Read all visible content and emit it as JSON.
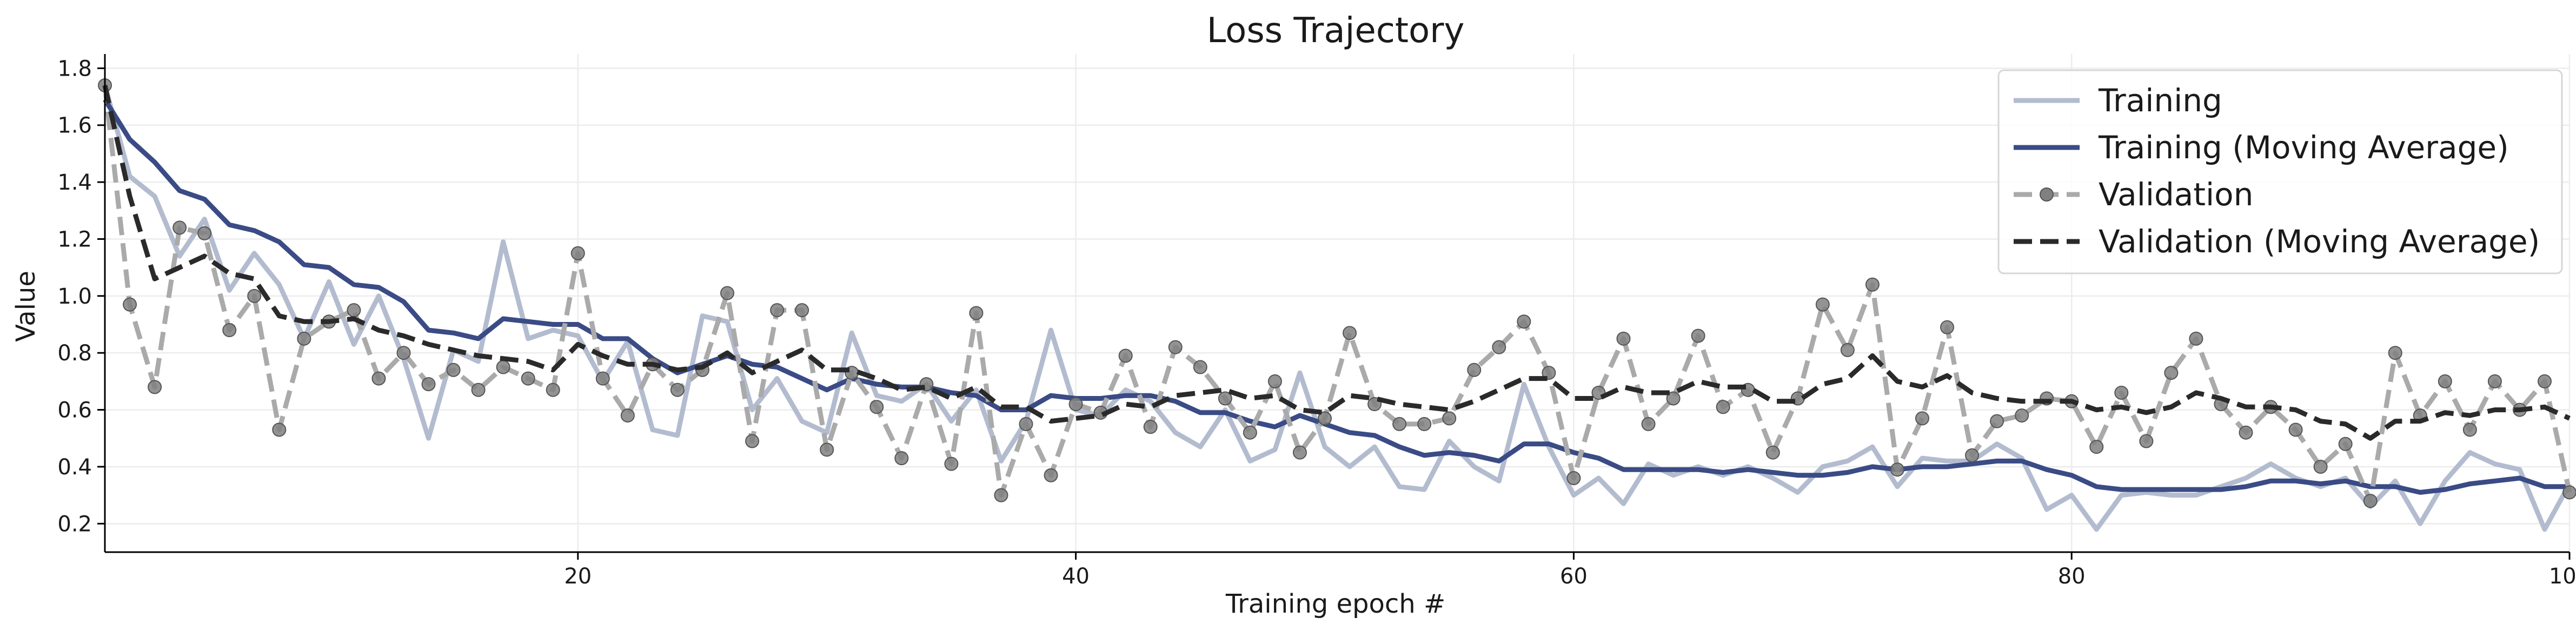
{
  "chart_data": {
    "type": "line",
    "title": "Loss Trajectory",
    "xlabel": "Training epoch #",
    "ylabel": "Value",
    "xlim": [
      1,
      100
    ],
    "ylim": [
      0.1,
      1.85
    ],
    "xticks": [
      20,
      40,
      60,
      80,
      100
    ],
    "yticks": [
      0.2,
      0.4,
      0.6,
      0.8,
      1.0,
      1.2,
      1.4,
      1.6,
      1.8
    ],
    "grid": true,
    "legend_position": "top-right",
    "x": [
      1,
      2,
      3,
      4,
      5,
      6,
      7,
      8,
      9,
      10,
      11,
      12,
      13,
      14,
      15,
      16,
      17,
      18,
      19,
      20,
      21,
      22,
      23,
      24,
      25,
      26,
      27,
      28,
      29,
      30,
      31,
      32,
      33,
      34,
      35,
      36,
      37,
      38,
      39,
      40,
      41,
      42,
      43,
      44,
      45,
      46,
      47,
      48,
      49,
      50,
      51,
      52,
      53,
      54,
      55,
      56,
      57,
      58,
      59,
      60,
      61,
      62,
      63,
      64,
      65,
      66,
      67,
      68,
      69,
      70,
      71,
      72,
      73,
      74,
      75,
      76,
      77,
      78,
      79,
      80,
      81,
      82,
      83,
      84,
      85,
      86,
      87,
      88,
      89,
      90,
      91,
      92,
      93,
      94,
      95,
      96,
      97,
      98,
      99,
      100
    ],
    "series": [
      {
        "name": "Training",
        "color": "#b3bccf",
        "style": "solid",
        "values": [
          1.74,
          1.42,
          1.35,
          1.14,
          1.27,
          1.02,
          1.15,
          1.04,
          0.85,
          1.05,
          0.83,
          1.0,
          0.78,
          0.5,
          0.81,
          0.77,
          1.19,
          0.85,
          0.88,
          0.86,
          0.7,
          0.84,
          0.53,
          0.51,
          0.93,
          0.91,
          0.6,
          0.71,
          0.56,
          0.52,
          0.87,
          0.65,
          0.63,
          0.69,
          0.56,
          0.67,
          0.42,
          0.56,
          0.88,
          0.6,
          0.58,
          0.67,
          0.63,
          0.52,
          0.47,
          0.6,
          0.42,
          0.46,
          0.73,
          0.47,
          0.4,
          0.47,
          0.33,
          0.32,
          0.49,
          0.4,
          0.35,
          0.69,
          0.47,
          0.3,
          0.36,
          0.27,
          0.41,
          0.37,
          0.4,
          0.37,
          0.4,
          0.36,
          0.31,
          0.4,
          0.42,
          0.47,
          0.33,
          0.43,
          0.42,
          0.42,
          0.48,
          0.43,
          0.25,
          0.3,
          0.18,
          0.3,
          0.31,
          0.3,
          0.3,
          0.33,
          0.36,
          0.41,
          0.36,
          0.33,
          0.36,
          0.26,
          0.35,
          0.2,
          0.35,
          0.45,
          0.41,
          0.39,
          0.18,
          0.34
        ]
      },
      {
        "name": "Training (Moving Average)",
        "color": "#3a4b85",
        "style": "solid",
        "values": [
          1.69,
          1.55,
          1.47,
          1.37,
          1.34,
          1.25,
          1.23,
          1.19,
          1.11,
          1.1,
          1.04,
          1.03,
          0.98,
          0.88,
          0.87,
          0.85,
          0.92,
          0.91,
          0.9,
          0.9,
          0.85,
          0.85,
          0.78,
          0.73,
          0.76,
          0.79,
          0.76,
          0.75,
          0.71,
          0.67,
          0.71,
          0.69,
          0.68,
          0.68,
          0.66,
          0.65,
          0.6,
          0.6,
          0.65,
          0.64,
          0.64,
          0.65,
          0.65,
          0.63,
          0.59,
          0.59,
          0.56,
          0.54,
          0.58,
          0.55,
          0.52,
          0.51,
          0.47,
          0.44,
          0.45,
          0.44,
          0.42,
          0.48,
          0.48,
          0.45,
          0.43,
          0.39,
          0.39,
          0.39,
          0.39,
          0.38,
          0.39,
          0.38,
          0.37,
          0.37,
          0.38,
          0.4,
          0.39,
          0.4,
          0.4,
          0.41,
          0.42,
          0.42,
          0.39,
          0.37,
          0.33,
          0.32,
          0.32,
          0.32,
          0.32,
          0.32,
          0.33,
          0.35,
          0.35,
          0.34,
          0.35,
          0.33,
          0.33,
          0.31,
          0.32,
          0.34,
          0.35,
          0.36,
          0.33,
          0.33
        ]
      },
      {
        "name": "Validation",
        "color": "#aaaaaa",
        "marker_color": "#808080",
        "style": "dashed-marker",
        "values": [
          1.74,
          0.97,
          0.68,
          1.24,
          1.22,
          0.88,
          1.0,
          0.53,
          0.85,
          0.91,
          0.95,
          0.71,
          0.8,
          0.69,
          0.74,
          0.67,
          0.75,
          0.71,
          0.67,
          1.15,
          0.71,
          0.58,
          0.76,
          0.67,
          0.74,
          1.01,
          0.49,
          0.95,
          0.95,
          0.46,
          0.73,
          0.61,
          0.43,
          0.69,
          0.41,
          0.94,
          0.3,
          0.55,
          0.37,
          0.62,
          0.59,
          0.79,
          0.54,
          0.82,
          0.75,
          0.64,
          0.52,
          0.7,
          0.45,
          0.57,
          0.87,
          0.62,
          0.55,
          0.55,
          0.57,
          0.74,
          0.82,
          0.91,
          0.73,
          0.36,
          0.66,
          0.85,
          0.55,
          0.64,
          0.86,
          0.61,
          0.67,
          0.45,
          0.64,
          0.97,
          0.81,
          1.04,
          0.39,
          0.57,
          0.89,
          0.44,
          0.56,
          0.58,
          0.64,
          0.63,
          0.47,
          0.66,
          0.49,
          0.73,
          0.85,
          0.62,
          0.52,
          0.61,
          0.53,
          0.4,
          0.48,
          0.28,
          0.8,
          0.58,
          0.7,
          0.53,
          0.7,
          0.6,
          0.7,
          0.31
        ]
      },
      {
        "name": "Validation (Moving Average)",
        "color": "#2a2a2a",
        "style": "dashed",
        "values": [
          1.74,
          1.35,
          1.06,
          1.1,
          1.14,
          1.08,
          1.06,
          0.93,
          0.91,
          0.91,
          0.92,
          0.88,
          0.86,
          0.83,
          0.81,
          0.79,
          0.78,
          0.77,
          0.74,
          0.83,
          0.79,
          0.76,
          0.76,
          0.74,
          0.75,
          0.8,
          0.73,
          0.77,
          0.81,
          0.74,
          0.74,
          0.71,
          0.67,
          0.68,
          0.64,
          0.68,
          0.61,
          0.61,
          0.56,
          0.57,
          0.58,
          0.62,
          0.61,
          0.65,
          0.66,
          0.67,
          0.64,
          0.65,
          0.6,
          0.59,
          0.65,
          0.64,
          0.62,
          0.61,
          0.6,
          0.63,
          0.67,
          0.71,
          0.71,
          0.64,
          0.64,
          0.68,
          0.66,
          0.66,
          0.7,
          0.68,
          0.68,
          0.63,
          0.63,
          0.69,
          0.71,
          0.79,
          0.7,
          0.68,
          0.72,
          0.66,
          0.64,
          0.63,
          0.63,
          0.63,
          0.6,
          0.61,
          0.59,
          0.61,
          0.66,
          0.64,
          0.61,
          0.61,
          0.6,
          0.56,
          0.55,
          0.5,
          0.56,
          0.56,
          0.59,
          0.58,
          0.6,
          0.6,
          0.61,
          0.57
        ]
      }
    ]
  }
}
